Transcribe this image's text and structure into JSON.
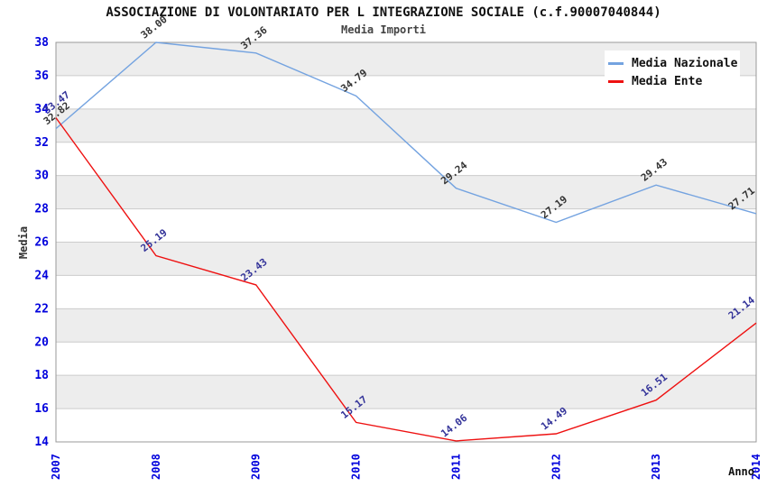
{
  "page": {
    "title": "ASSOCIAZIONE DI VOLONTARIATO PER L INTEGRAZIONE SOCIALE (c.f.90007040844)",
    "subtitle": "Media Importi"
  },
  "chart_data": {
    "type": "line",
    "title": "ASSOCIAZIONE DI VOLONTARIATO PER L INTEGRAZIONE SOCIALE (c.f.90007040844)",
    "subtitle": "Media Importi",
    "xlabel": "Anno",
    "ylabel": "Media",
    "categories": [
      2007,
      2008,
      2009,
      2010,
      2011,
      2012,
      2013,
      2014
    ],
    "series": [
      {
        "name": "Media Nazionale",
        "color": "#74A3E0",
        "label_color": "#333333",
        "values": [
          32.82,
          38.0,
          37.36,
          34.79,
          29.24,
          27.19,
          29.43,
          27.71
        ]
      },
      {
        "name": "Media Ente",
        "color": "#EE1111",
        "label_color": "#333399",
        "values": [
          33.47,
          25.19,
          23.43,
          15.17,
          14.06,
          14.49,
          16.51,
          21.14
        ]
      }
    ],
    "ylim": [
      14,
      38
    ],
    "ytick_step": 2,
    "grid": true,
    "legend_position": "top-right",
    "styles": {
      "tick_label_color": "#0000DD",
      "grid_color": "#CCCCCC",
      "band_color": "#EDEDED",
      "plot_border_color": "#999999",
      "background": "#FFFFFF"
    }
  }
}
